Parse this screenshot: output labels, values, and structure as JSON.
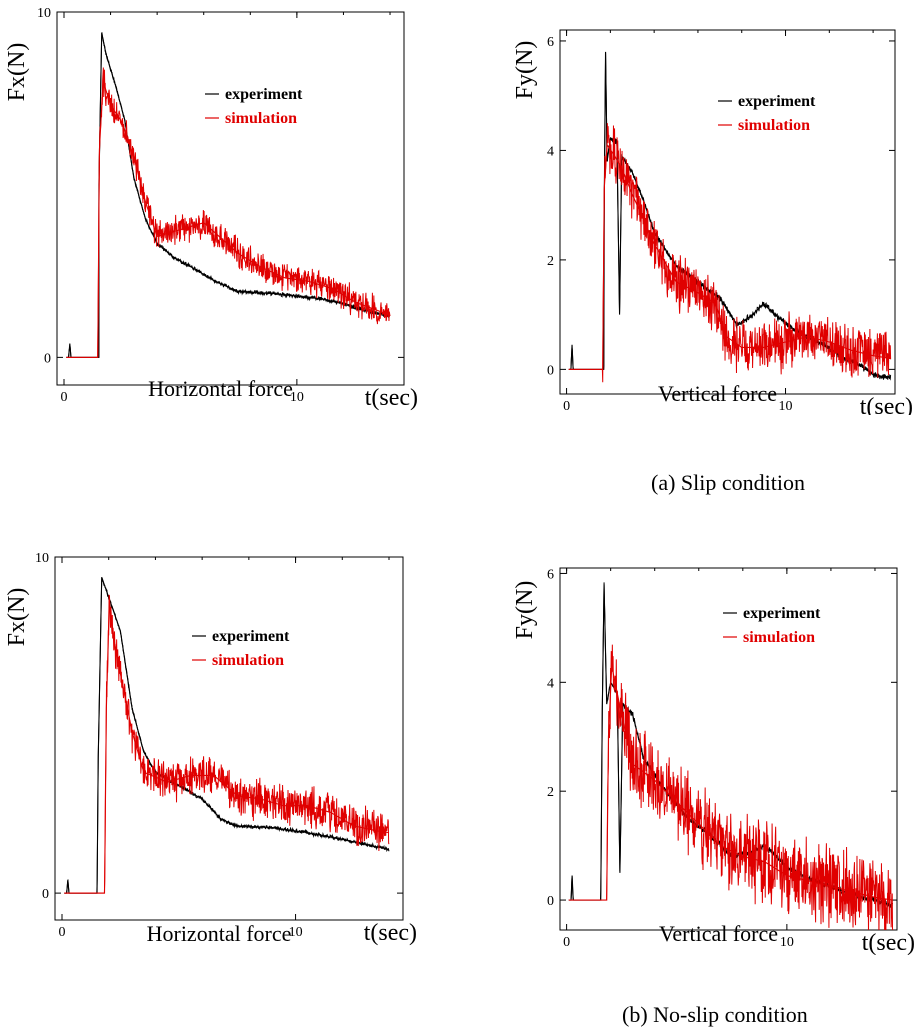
{
  "colors": {
    "experiment": "#000000",
    "simulation": "#e00000"
  },
  "captions": {
    "a": "(a) Slip condition",
    "b": "(b) No-slip condition"
  },
  "chart_data": [
    {
      "id": "a-horizontal",
      "type": "line",
      "title": "Horizontal force",
      "xlabel": "t(sec)",
      "ylabel": "Fx(N)",
      "xlim": [
        -0.3,
        14.6
      ],
      "ylim": [
        -0.8,
        10
      ],
      "xticks": [
        0,
        10
      ],
      "yticks": [
        0,
        10
      ],
      "legend": "top-right",
      "series": [
        {
          "name": "experiment",
          "color": "#000000",
          "noise": 0.05,
          "points": [
            [
              0.1,
              0
            ],
            [
              0.2,
              0
            ],
            [
              0.25,
              0.4
            ],
            [
              0.3,
              0
            ],
            [
              1.5,
              0
            ],
            [
              1.5,
              5
            ],
            [
              1.62,
              9.4
            ],
            [
              1.8,
              8.8
            ],
            [
              2.2,
              7.9
            ],
            [
              2.6,
              6.9
            ],
            [
              3.0,
              5.2
            ],
            [
              3.5,
              4.0
            ],
            [
              4.0,
              3.3
            ],
            [
              4.7,
              2.9
            ],
            [
              5.5,
              2.6
            ],
            [
              6.5,
              2.2
            ],
            [
              7.5,
              1.9
            ],
            [
              9.0,
              1.85
            ],
            [
              11.0,
              1.7
            ],
            [
              12.0,
              1.55
            ],
            [
              13.0,
              1.35
            ],
            [
              14.0,
              1.2
            ]
          ]
        },
        {
          "name": "simulation",
          "color": "#e00000",
          "noise": 0.35,
          "points": [
            [
              0.1,
              0
            ],
            [
              1.45,
              0
            ],
            [
              1.52,
              6.0
            ],
            [
              1.68,
              8.0
            ],
            [
              2.0,
              7.3
            ],
            [
              2.5,
              6.8
            ],
            [
              3.0,
              5.8
            ],
            [
              3.5,
              4.5
            ],
            [
              4.0,
              3.5
            ],
            [
              5.0,
              3.7
            ],
            [
              6.0,
              3.9
            ],
            [
              6.5,
              3.6
            ],
            [
              7.5,
              3.0
            ],
            [
              8.5,
              2.6
            ],
            [
              9.5,
              2.3
            ],
            [
              10.5,
              2.2
            ],
            [
              11.5,
              2.0
            ],
            [
              12.5,
              1.6
            ],
            [
              13.5,
              1.35
            ],
            [
              14.0,
              1.2
            ]
          ]
        }
      ]
    },
    {
      "id": "a-vertical",
      "type": "line",
      "title": "Vertical force",
      "xlabel": "t(sec)",
      "ylabel": "Fy(N)",
      "xlim": [
        -0.3,
        15.0
      ],
      "ylim": [
        -0.45,
        6.2
      ],
      "xticks": [
        0,
        10
      ],
      "yticks": [
        0,
        2,
        4,
        6
      ],
      "legend": "top-right",
      "series": [
        {
          "name": "experiment",
          "color": "#000000",
          "noise": 0.05,
          "points": [
            [
              0.1,
              0
            ],
            [
              0.2,
              0
            ],
            [
              0.25,
              0.45
            ],
            [
              0.3,
              0
            ],
            [
              1.7,
              0
            ],
            [
              1.72,
              3.0
            ],
            [
              1.78,
              5.8
            ],
            [
              1.85,
              3.8
            ],
            [
              2.0,
              4.2
            ],
            [
              2.3,
              4.15
            ],
            [
              2.42,
              1.0
            ],
            [
              2.52,
              3.9
            ],
            [
              3.0,
              3.6
            ],
            [
              3.5,
              3.1
            ],
            [
              4.0,
              2.5
            ],
            [
              5.0,
              1.9
            ],
            [
              6.0,
              1.6
            ],
            [
              7.0,
              1.3
            ],
            [
              7.8,
              0.8
            ],
            [
              8.5,
              1.0
            ],
            [
              9.0,
              1.2
            ],
            [
              9.5,
              1.0
            ],
            [
              10.5,
              0.7
            ],
            [
              11.5,
              0.5
            ],
            [
              12.5,
              0.25
            ],
            [
              13.5,
              0.05
            ],
            [
              14.0,
              -0.1
            ],
            [
              14.8,
              -0.15
            ]
          ]
        },
        {
          "name": "simulation",
          "color": "#e00000",
          "noise": 0.42,
          "points": [
            [
              0.1,
              0
            ],
            [
              1.65,
              0
            ],
            [
              1.72,
              3.3
            ],
            [
              1.85,
              4.1
            ],
            [
              2.2,
              3.9
            ],
            [
              2.6,
              3.6
            ],
            [
              3.0,
              3.2
            ],
            [
              4.0,
              2.3
            ],
            [
              5.0,
              1.6
            ],
            [
              6.0,
              1.4
            ],
            [
              6.8,
              1.2
            ],
            [
              7.3,
              0.6
            ],
            [
              8.0,
              0.4
            ],
            [
              9.0,
              0.4
            ],
            [
              10.0,
              0.5
            ],
            [
              11.0,
              0.6
            ],
            [
              12.0,
              0.5
            ],
            [
              13.0,
              0.35
            ],
            [
              14.0,
              0.25
            ],
            [
              14.8,
              0.2
            ]
          ]
        }
      ]
    },
    {
      "id": "b-horizontal",
      "type": "line",
      "title": "Horizontal force",
      "xlabel": "t(sec)",
      "ylabel": "Fx(N)",
      "xlim": [
        -0.3,
        14.6
      ],
      "ylim": [
        -0.8,
        10
      ],
      "xticks": [
        0,
        10
      ],
      "yticks": [
        0,
        10
      ],
      "legend": "top-right",
      "series": [
        {
          "name": "experiment",
          "color": "#000000",
          "noise": 0.05,
          "points": [
            [
              0.1,
              0
            ],
            [
              0.2,
              0
            ],
            [
              0.25,
              0.4
            ],
            [
              0.3,
              0
            ],
            [
              1.5,
              0
            ],
            [
              1.55,
              4.0
            ],
            [
              1.7,
              9.4
            ],
            [
              2.0,
              8.8
            ],
            [
              2.5,
              7.8
            ],
            [
              3.0,
              5.5
            ],
            [
              3.5,
              4.2
            ],
            [
              4.0,
              3.6
            ],
            [
              5.0,
              3.2
            ],
            [
              6.0,
              2.8
            ],
            [
              6.8,
              2.2
            ],
            [
              7.5,
              2.0
            ],
            [
              9.0,
              1.95
            ],
            [
              10.5,
              1.8
            ],
            [
              12.0,
              1.6
            ],
            [
              13.0,
              1.45
            ],
            [
              14.0,
              1.3
            ]
          ]
        },
        {
          "name": "simulation",
          "color": "#e00000",
          "noise": 0.5,
          "points": [
            [
              0.1,
              0
            ],
            [
              1.82,
              0
            ],
            [
              1.9,
              5.5
            ],
            [
              2.02,
              8.6
            ],
            [
              2.3,
              7.2
            ],
            [
              2.6,
              6.2
            ],
            [
              3.0,
              4.8
            ],
            [
              3.5,
              3.6
            ],
            [
              4.5,
              3.3
            ],
            [
              5.5,
              3.5
            ],
            [
              6.5,
              3.5
            ],
            [
              7.5,
              2.9
            ],
            [
              8.5,
              2.8
            ],
            [
              9.5,
              2.6
            ],
            [
              10.5,
              2.6
            ],
            [
              11.5,
              2.4
            ],
            [
              12.5,
              2.0
            ],
            [
              13.5,
              1.85
            ],
            [
              14.0,
              1.8
            ]
          ]
        }
      ]
    },
    {
      "id": "b-vertical",
      "type": "line",
      "title": "Vertical force",
      "xlabel": "t(sec)",
      "ylabel": "Fy(N)",
      "xlim": [
        -0.3,
        15.0
      ],
      "ylim": [
        -0.55,
        6.1
      ],
      "xticks": [
        0,
        10
      ],
      "yticks": [
        0,
        2,
        4,
        6
      ],
      "legend": "top-right",
      "series": [
        {
          "name": "experiment",
          "color": "#000000",
          "noise": 0.05,
          "points": [
            [
              0.1,
              0
            ],
            [
              0.2,
              0
            ],
            [
              0.25,
              0.45
            ],
            [
              0.3,
              0
            ],
            [
              1.55,
              0
            ],
            [
              1.62,
              3.5
            ],
            [
              1.7,
              5.8
            ],
            [
              1.82,
              3.6
            ],
            [
              2.0,
              4.0
            ],
            [
              2.3,
              3.8
            ],
            [
              2.42,
              0.5
            ],
            [
              2.55,
              3.6
            ],
            [
              3.0,
              3.4
            ],
            [
              3.5,
              2.6
            ],
            [
              4.5,
              2.0
            ],
            [
              5.5,
              1.5
            ],
            [
              6.5,
              1.2
            ],
            [
              7.5,
              0.8
            ],
            [
              8.5,
              0.9
            ],
            [
              9.0,
              1.0
            ],
            [
              10.0,
              0.6
            ],
            [
              11.0,
              0.4
            ],
            [
              12.0,
              0.25
            ],
            [
              13.0,
              0.1
            ],
            [
              14.0,
              0.0
            ],
            [
              14.8,
              -0.1
            ]
          ]
        },
        {
          "name": "simulation",
          "color": "#e00000",
          "noise": 0.6,
          "points": [
            [
              0.1,
              0
            ],
            [
              1.82,
              0
            ],
            [
              1.9,
              3.0
            ],
            [
              2.05,
              4.3
            ],
            [
              2.5,
              3.4
            ],
            [
              3.0,
              2.5
            ],
            [
              4.0,
              2.2
            ],
            [
              5.0,
              1.8
            ],
            [
              6.0,
              1.4
            ],
            [
              7.0,
              1.0
            ],
            [
              8.0,
              0.8
            ],
            [
              9.0,
              0.7
            ],
            [
              10.0,
              0.45
            ],
            [
              11.0,
              0.35
            ],
            [
              12.0,
              0.25
            ],
            [
              13.0,
              0.15
            ],
            [
              14.0,
              0.05
            ],
            [
              14.8,
              0.0
            ]
          ]
        }
      ]
    }
  ]
}
